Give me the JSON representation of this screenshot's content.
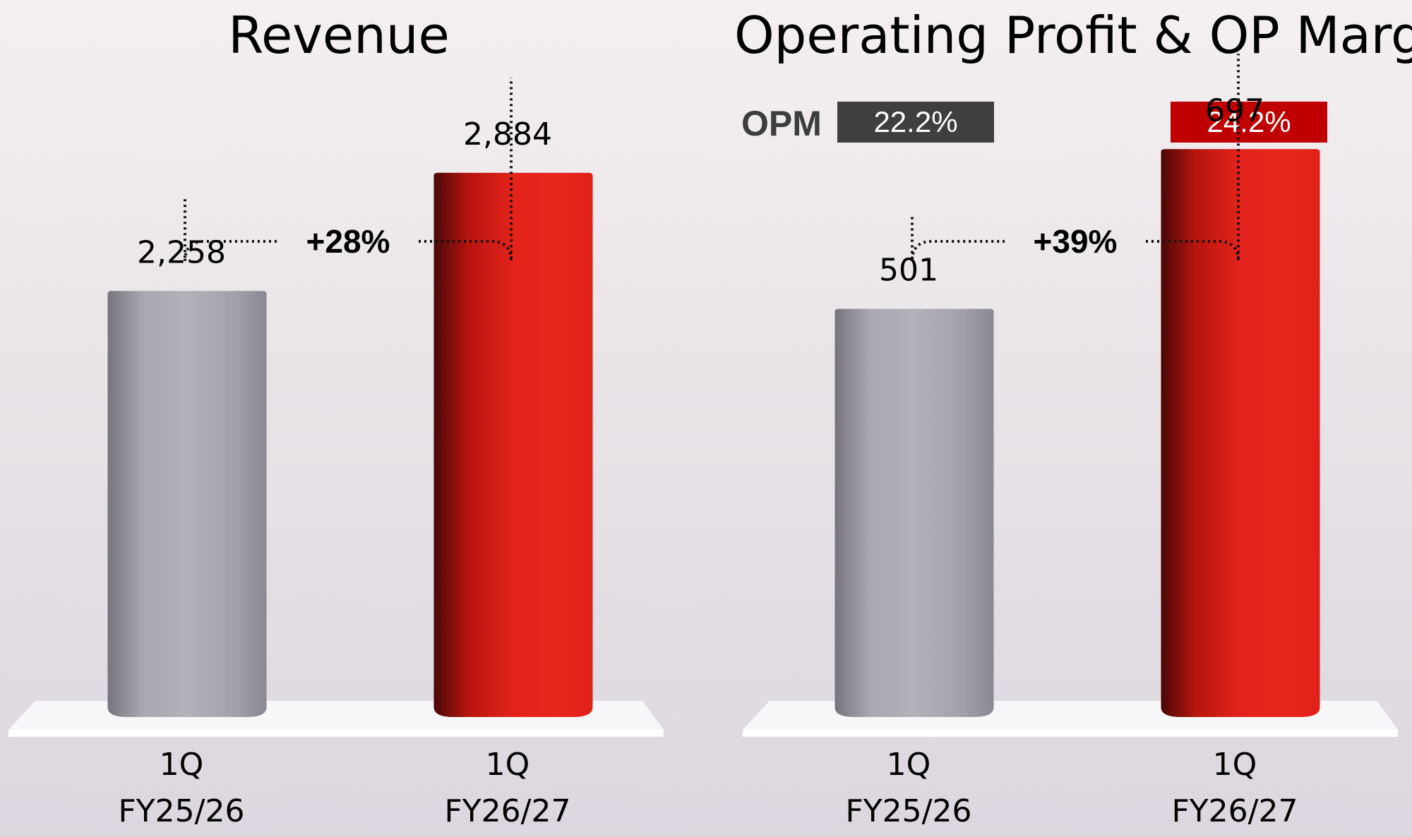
{
  "colors": {
    "prior_bar": "#a8a6b1",
    "current_bar": "#e3231c",
    "opm_prior": "#3f3f3f",
    "opm_current": "#c00000"
  },
  "chart_data": [
    {
      "type": "bar",
      "title": "Revenue",
      "categories": [
        "1Q\nFY25/26",
        "1Q\nFY26/27"
      ],
      "category_lines": [
        [
          "1Q",
          "FY25/26"
        ],
        [
          "1Q",
          "FY26/27"
        ]
      ],
      "values": [
        2258,
        2884
      ],
      "value_labels": [
        "2,258",
        "2,884"
      ],
      "ylim": [
        0,
        3800
      ],
      "growth_label": "+28%",
      "grid": false
    },
    {
      "type": "bar",
      "title": "Operating Profit & OP Margin",
      "categories": [
        "1Q\nFY25/26",
        "1Q\nFY26/27"
      ],
      "category_lines": [
        [
          "1Q",
          "FY25/26"
        ],
        [
          "1Q",
          "FY26/27"
        ]
      ],
      "values": [
        501,
        697
      ],
      "value_labels": [
        "501",
        "697"
      ],
      "ylim": [
        0,
        880
      ],
      "growth_label": "+39%",
      "opm_label": "OPM",
      "opm_values": [
        "22.2%",
        "24.2%"
      ],
      "grid": false
    }
  ]
}
